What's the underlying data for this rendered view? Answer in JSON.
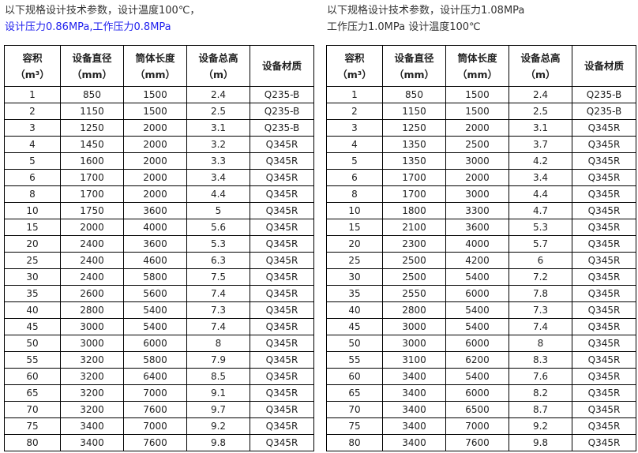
{
  "left": {
    "caption_line1": "以下规格设计技术参数，设计温度100℃，",
    "caption_line2": "设计压力0.86MPa,工作压力0.8MPa",
    "caption_line2_color": "#2222ee",
    "headers": [
      [
        "容积",
        "（m³）"
      ],
      [
        "设备直径",
        "（mm）"
      ],
      [
        "筒体长度",
        "（mm）"
      ],
      [
        "设备总高",
        "（m）"
      ],
      [
        "设备材质",
        ""
      ]
    ],
    "rows": [
      [
        "1",
        "850",
        "1500",
        "2.4",
        "Q235-B"
      ],
      [
        "2",
        "1150",
        "1500",
        "2.5",
        "Q235-B"
      ],
      [
        "3",
        "1250",
        "2000",
        "3.1",
        "Q235-B"
      ],
      [
        "4",
        "1450",
        "2000",
        "3.2",
        "Q345R"
      ],
      [
        "5",
        "1600",
        "2000",
        "3.3",
        "Q345R"
      ],
      [
        "6",
        "1700",
        "2000",
        "3.4",
        "Q345R"
      ],
      [
        "8",
        "1700",
        "2000",
        "4.4",
        "Q345R"
      ],
      [
        "10",
        "1750",
        "3600",
        "5",
        "Q345R"
      ],
      [
        "15",
        "2000",
        "4000",
        "5.6",
        "Q345R"
      ],
      [
        "20",
        "2400",
        "3600",
        "5.3",
        "Q345R"
      ],
      [
        "25",
        "2400",
        "4600",
        "6.3",
        "Q345R"
      ],
      [
        "30",
        "2400",
        "5800",
        "7.5",
        "Q345R"
      ],
      [
        "35",
        "2600",
        "5600",
        "7.4",
        "Q345R"
      ],
      [
        "40",
        "2800",
        "5400",
        "7.3",
        "Q345R"
      ],
      [
        "45",
        "3000",
        "5400",
        "7.4",
        "Q345R"
      ],
      [
        "50",
        "3000",
        "6000",
        "8",
        "Q345R"
      ],
      [
        "55",
        "3200",
        "5800",
        "7.9",
        "Q345R"
      ],
      [
        "60",
        "3200",
        "6400",
        "8.5",
        "Q345R"
      ],
      [
        "65",
        "3200",
        "7000",
        "9.1",
        "Q345R"
      ],
      [
        "70",
        "3200",
        "7600",
        "9.7",
        "Q345R"
      ],
      [
        "75",
        "3400",
        "7000",
        "9.2",
        "Q345R"
      ],
      [
        "80",
        "3400",
        "7600",
        "9.8",
        "Q345R"
      ]
    ]
  },
  "right": {
    "caption_line1": "以下规格设计技术参数，设计压力1.08MPa",
    "caption_line2": "工作压力1.0MPa 设计温度100℃",
    "headers": [
      [
        "容积",
        "（m³）"
      ],
      [
        "设备直径",
        "（mm）"
      ],
      [
        "筒体长度",
        "（mm）"
      ],
      [
        "设备总高",
        "（m）"
      ],
      [
        "设备材质",
        ""
      ]
    ],
    "rows": [
      [
        "1",
        "850",
        "1500",
        "2.4",
        "Q235-B"
      ],
      [
        "2",
        "1150",
        "1500",
        "2.5",
        "Q235-B"
      ],
      [
        "3",
        "1250",
        "2000",
        "3.1",
        "Q345R"
      ],
      [
        "4",
        "1350",
        "2500",
        "3.7",
        "Q345R"
      ],
      [
        "5",
        "1350",
        "3000",
        "4.2",
        "Q345R"
      ],
      [
        "6",
        "1700",
        "2000",
        "3.4",
        "Q345R"
      ],
      [
        "8",
        "1700",
        "3000",
        "4.4",
        "Q345R"
      ],
      [
        "10",
        "1800",
        "3300",
        "4.7",
        "Q345R"
      ],
      [
        "15",
        "2100",
        "3600",
        "5.3",
        "Q345R"
      ],
      [
        "20",
        "2300",
        "4000",
        "5.7",
        "Q345R"
      ],
      [
        "25",
        "2500",
        "4200",
        "6",
        "Q345R"
      ],
      [
        "30",
        "2500",
        "5400",
        "7.2",
        "Q345R"
      ],
      [
        "35",
        "2550",
        "6000",
        "7.8",
        "Q345R"
      ],
      [
        "40",
        "2800",
        "5400",
        "7.3",
        "Q345R"
      ],
      [
        "45",
        "3000",
        "5400",
        "7.4",
        "Q345R"
      ],
      [
        "50",
        "3000",
        "6000",
        "8",
        "Q345R"
      ],
      [
        "55",
        "3100",
        "6200",
        "8.3",
        "Q345R"
      ],
      [
        "60",
        "3400",
        "5400",
        "7.6",
        "Q345R"
      ],
      [
        "65",
        "3400",
        "6000",
        "8.2",
        "Q345R"
      ],
      [
        "70",
        "3400",
        "6500",
        "8.7",
        "Q345R"
      ],
      [
        "75",
        "3400",
        "7000",
        "9.2",
        "Q345R"
      ],
      [
        "80",
        "3400",
        "7600",
        "9.8",
        "Q345R"
      ]
    ]
  }
}
